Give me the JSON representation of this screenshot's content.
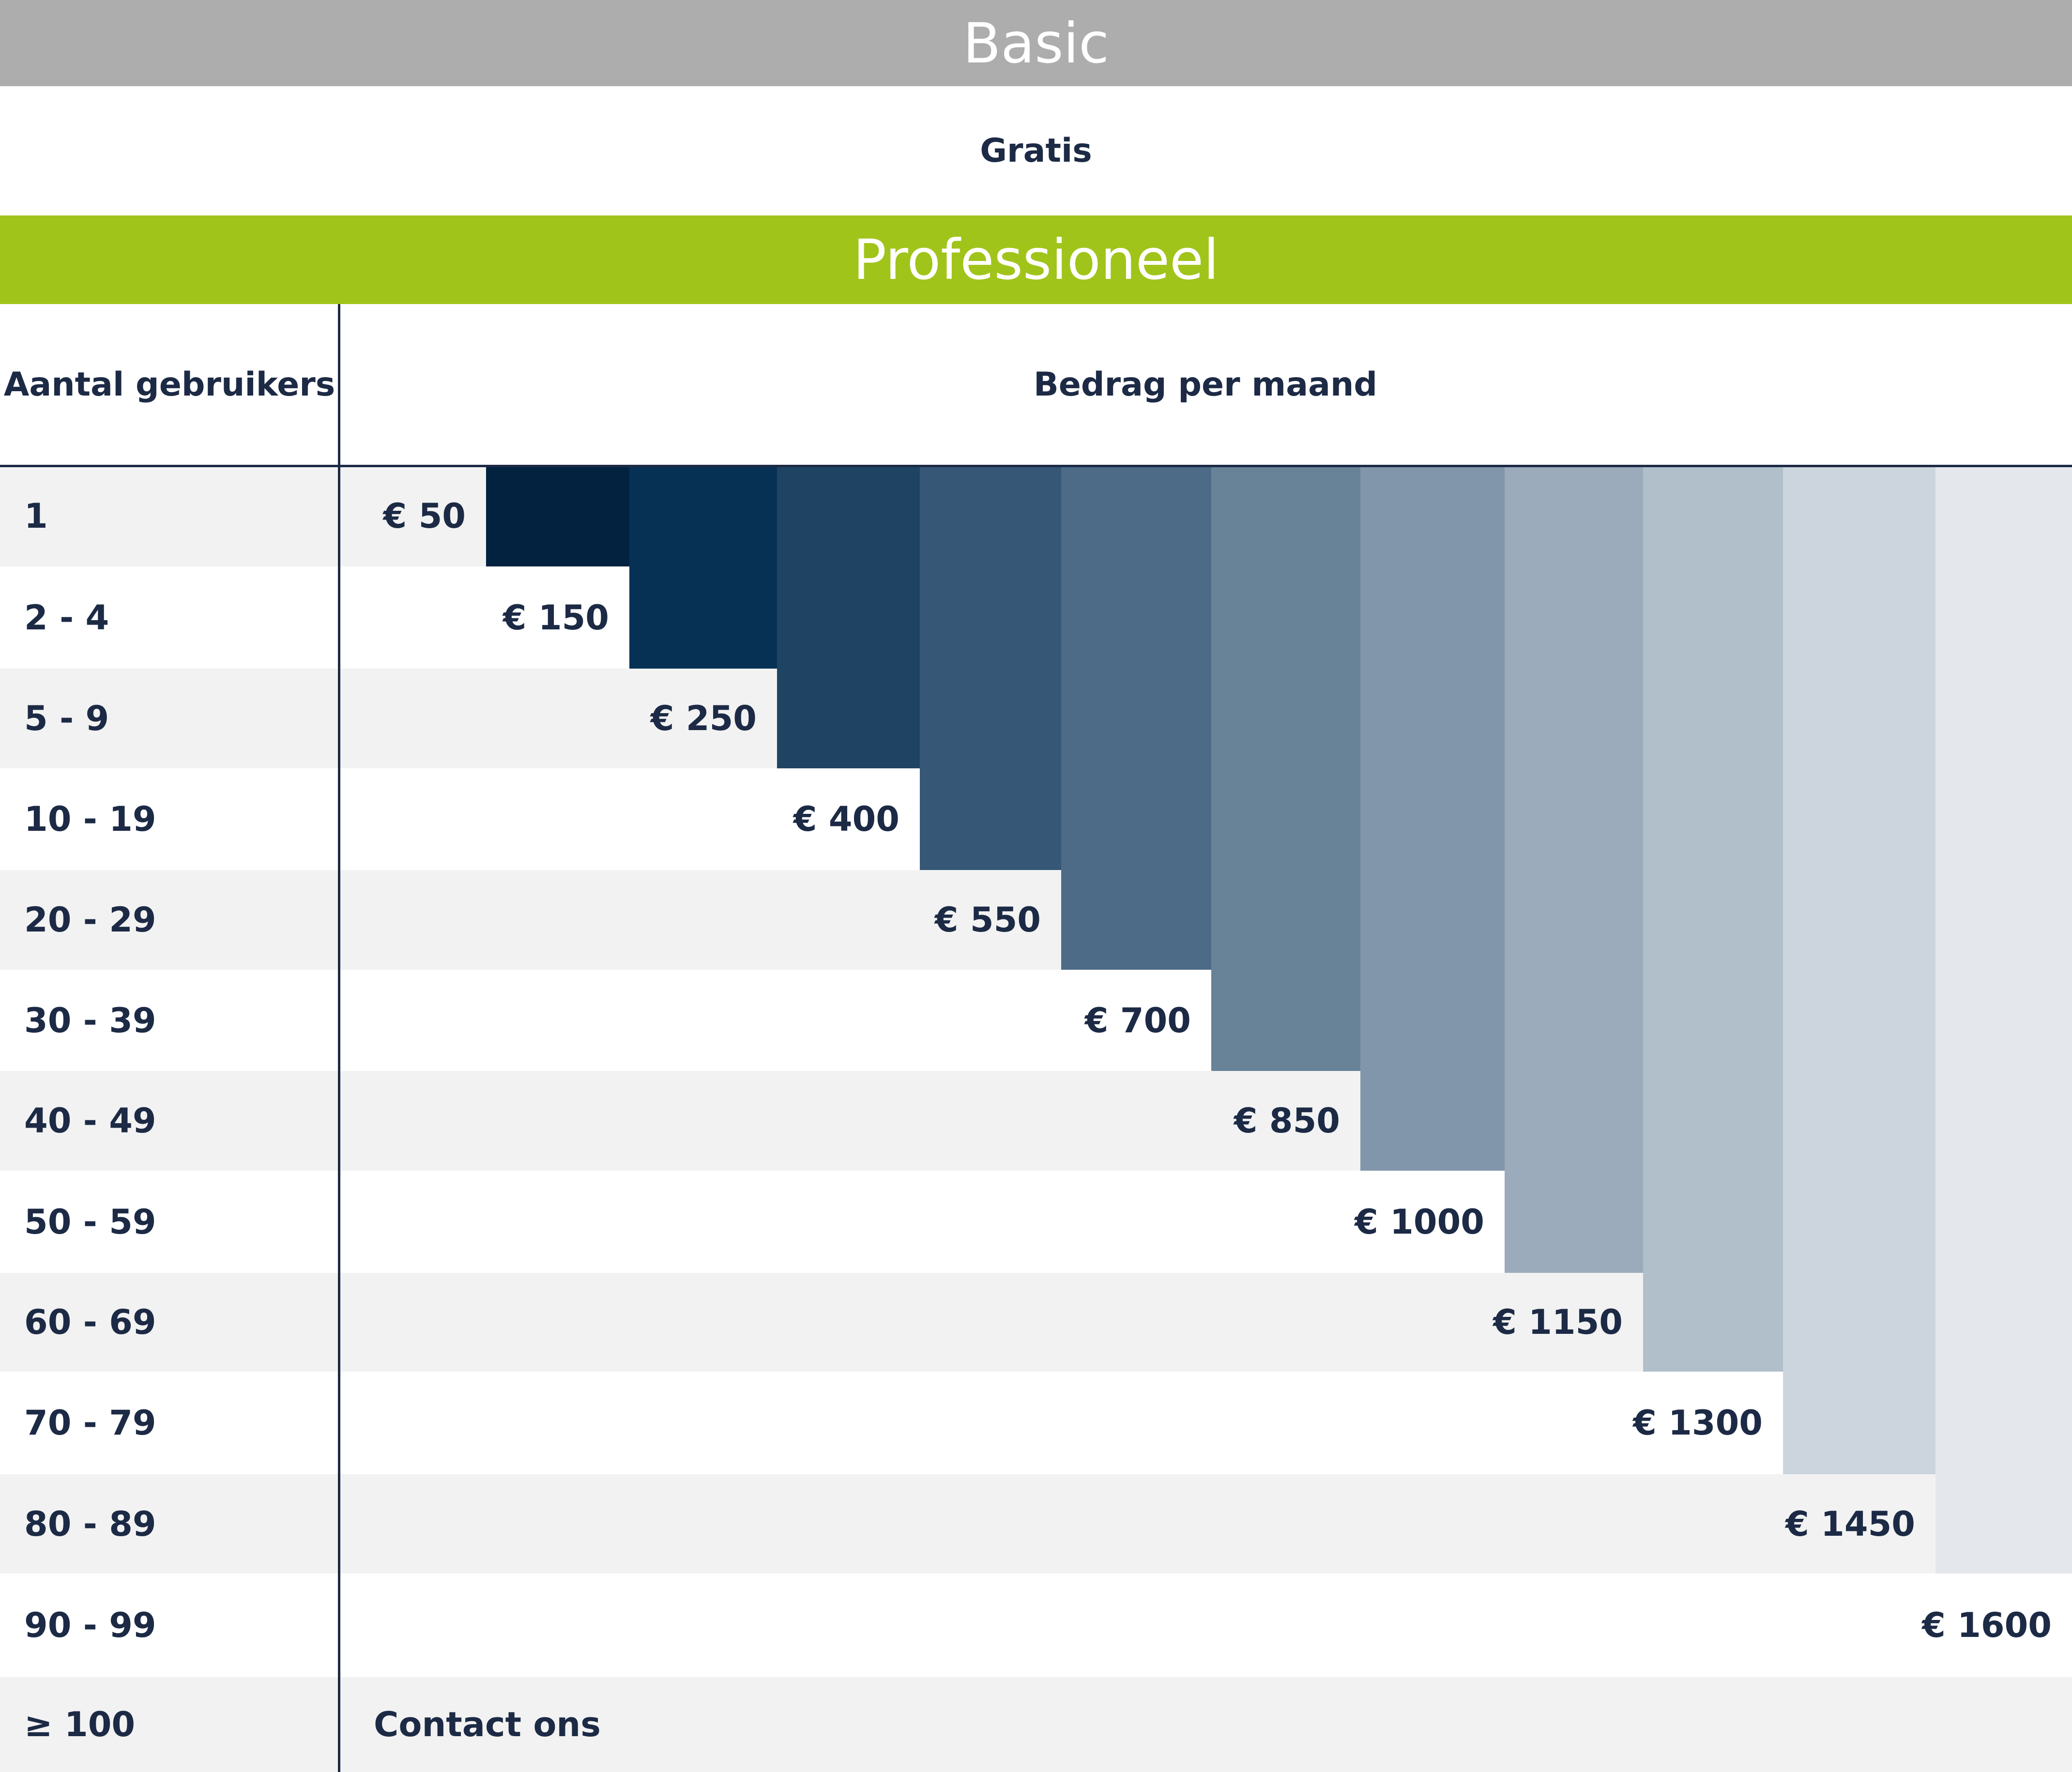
{
  "basic": {
    "title": "Basic",
    "price": "Gratis"
  },
  "professional": {
    "title": "Professioneel",
    "col_users": "Aantal gebruikers",
    "col_amount": "Bedrag per maand",
    "tiers": [
      {
        "users": "1",
        "price": "€ 50",
        "bar_color": "#02223f"
      },
      {
        "users": "2 - 4",
        "price": "€ 150",
        "bar_color": "#073154"
      },
      {
        "users": "5 - 9",
        "price": "€ 250",
        "bar_color": "#1f4463"
      },
      {
        "users": "10 - 19",
        "price": "€ 400",
        "bar_color": "#365876"
      },
      {
        "users": "20 - 29",
        "price": "€ 550",
        "bar_color": "#4d6b86"
      },
      {
        "users": "30 - 39",
        "price": "€ 700",
        "bar_color": "#688297"
      },
      {
        "users": "40 - 49",
        "price": "€ 850",
        "bar_color": "#8296ab"
      },
      {
        "users": "50 - 59",
        "price": "€ 1000",
        "bar_color": "#9babbb"
      },
      {
        "users": "60 - 69",
        "price": "€ 1150",
        "bar_color": "#b1bfca"
      },
      {
        "users": "70 - 79",
        "price": "€ 1300",
        "bar_color": "#ccd4dd"
      },
      {
        "users": "80 - 89",
        "price": "€ 1450",
        "bar_color": "#e4e7ec"
      },
      {
        "users": "90 - 99",
        "price": "€ 1600",
        "bar_color": null
      }
    ],
    "last_row": {
      "users": "≥ 100",
      "price": "Contact ons"
    }
  }
}
